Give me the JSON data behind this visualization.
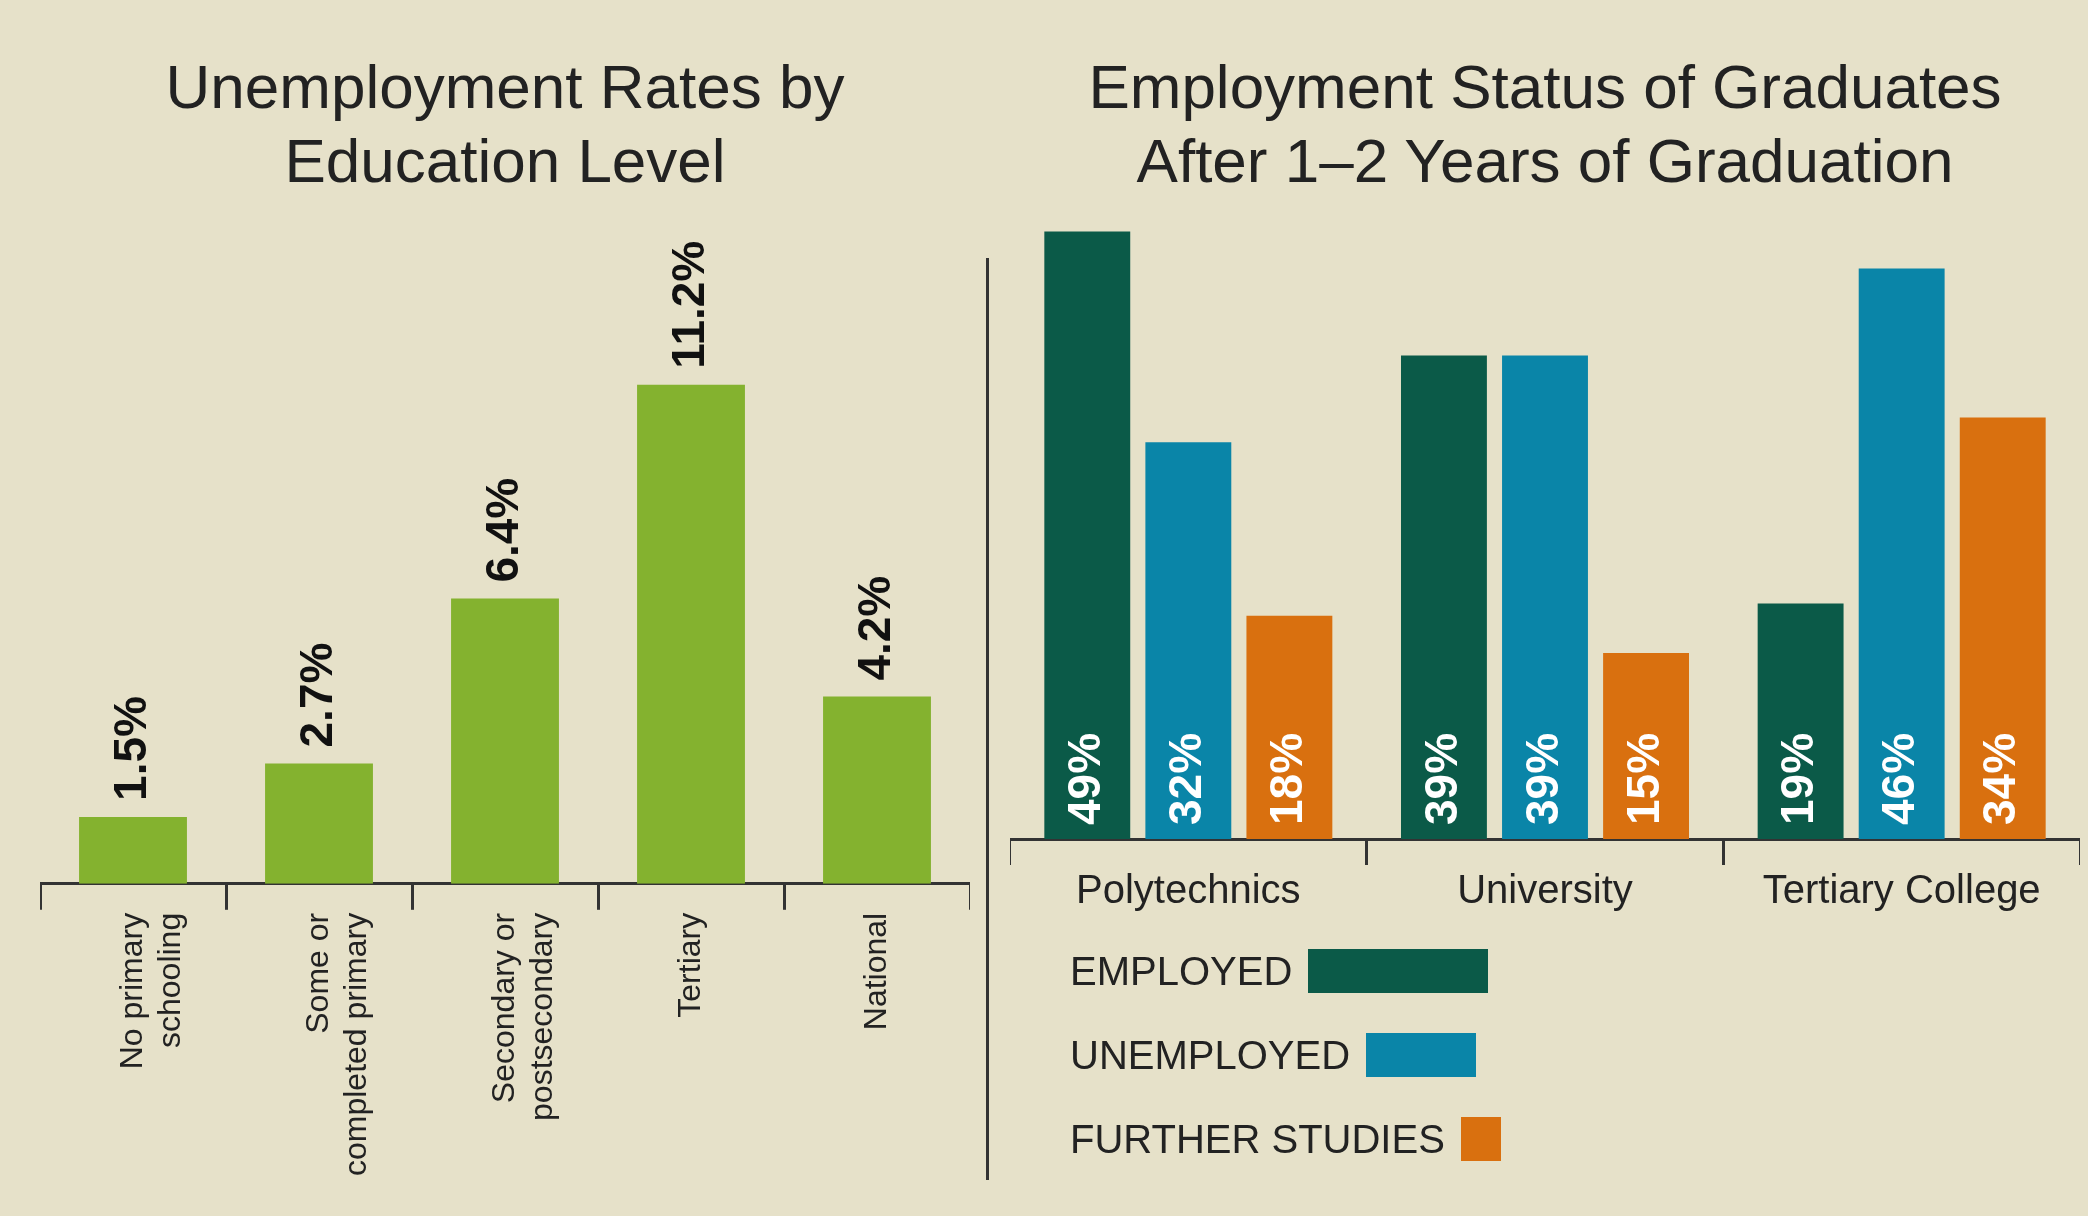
{
  "chart_data": [
    {
      "type": "bar",
      "title": "Unemployment Rates by Education Level",
      "categories": [
        "No primary schooling",
        "Some or completed primary",
        "Secondary or postsecondary",
        "Tertiary",
        "National"
      ],
      "values": [
        1.5,
        2.7,
        6.4,
        11.2,
        4.2
      ],
      "color": "#84b22f",
      "value_labels": [
        "1.5%",
        "2.7%",
        "6.4%",
        "11.2%",
        "4.2%"
      ],
      "grid": false,
      "tick_labels": "x",
      "legend": false
    },
    {
      "type": "bar",
      "title": "Employment Status of Graduates After 1–2 Years of Graduation",
      "categories": [
        "Polytechnics",
        "University",
        "Tertiary College"
      ],
      "series": [
        {
          "name": "EMPLOYED",
          "color": "#0b5a48",
          "values": [
            49,
            39,
            19
          ],
          "value_labels": [
            "49%",
            "39%",
            "19%"
          ]
        },
        {
          "name": "UNEMPLOYED",
          "color": "#0a85a8",
          "values": [
            32,
            39,
            46
          ],
          "value_labels": [
            "32%",
            "39%",
            "46%"
          ]
        },
        {
          "name": "FURTHER STUDIES",
          "color": "#d9700f",
          "values": [
            18,
            15,
            34
          ],
          "value_labels": [
            "18%",
            "15%",
            "34%"
          ]
        }
      ],
      "grid": false,
      "tick_labels": "x",
      "legend": "bottom left"
    }
  ]
}
